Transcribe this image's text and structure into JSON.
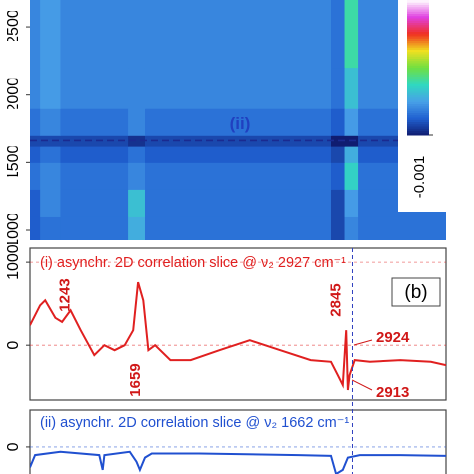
{
  "chart_data": [
    {
      "type": "heatmap",
      "x_edges": [
        1020,
        1080,
        1200,
        1600,
        1700,
        2800,
        2880,
        2960,
        3480
      ],
      "y_edges": [
        926,
        1100,
        1300,
        1500,
        1620,
        1700,
        1900,
        2200,
        2700
      ],
      "z": [
        [
          -0.0007,
          -0.0006,
          -0.0006,
          -0.0003,
          -0.0006,
          -0.0008,
          -0.0005,
          -0.0006
        ],
        [
          -0.0007,
          -0.0005,
          -0.0006,
          -0.0002,
          -0.0006,
          -0.0008,
          -0.0004,
          -0.0006
        ],
        [
          -0.0006,
          -0.0005,
          -0.0006,
          -0.0005,
          -0.0006,
          -0.0007,
          -0.0001,
          -0.0006
        ],
        [
          -0.0007,
          -0.0006,
          -0.0007,
          -0.0006,
          -0.0007,
          -0.0008,
          -0.0003,
          -0.0007
        ],
        [
          -0.0008,
          -0.0008,
          -0.0008,
          -0.0009,
          -0.0008,
          -0.001,
          -0.001,
          -0.0008
        ],
        [
          -0.0006,
          -0.0005,
          -0.0006,
          -0.0005,
          -0.0006,
          -0.0007,
          -0.0004,
          -0.0006
        ],
        [
          -0.0005,
          -0.0004,
          -0.0005,
          -0.0005,
          -0.0005,
          -0.0006,
          -0.0002,
          -0.0005
        ],
        [
          -0.0005,
          -0.0004,
          -0.0005,
          -0.0005,
          -0.0005,
          -0.0006,
          0.0,
          -0.0005
        ]
      ],
      "clim": [
        -0.001,
        0.0015
      ],
      "colorscale": [
        "#101c70",
        "#2060d0",
        "#48a0e8",
        "#30d8c0",
        "#70e040",
        "#f0e020",
        "#f03020",
        "#e040e0",
        "#ffffff"
      ],
      "colorbar_ticks": [
        -0.001
      ],
      "xlim": [
        1020,
        3480
      ],
      "ylim": [
        926,
        2700
      ],
      "yticks": [
        1000,
        1500,
        2000,
        2500
      ],
      "hline": 1662,
      "annotation": "(ii)"
    },
    {
      "type": "line",
      "title": "(i) asynchr. 2D correlation slice @ ν₂ 2927 cm⁻¹",
      "color": "#e02020",
      "panel_label": "(b)",
      "x": [
        1020,
        1080,
        1110,
        1170,
        1210,
        1260,
        1320,
        1400,
        1460,
        1520,
        1580,
        1630,
        1659,
        1690,
        1720,
        1760,
        1850,
        1970,
        2140,
        2320,
        2500,
        2680,
        2800,
        2840,
        2870,
        2890,
        2900,
        2910,
        2940,
        3030,
        3210,
        3390,
        3480
      ],
      "values": [
        240,
        480,
        540,
        330,
        280,
        420,
        180,
        -120,
        0,
        -60,
        0,
        180,
        760,
        540,
        -60,
        0,
        -180,
        -180,
        -60,
        60,
        -60,
        -180,
        -200,
        -360,
        -480,
        180,
        -540,
        -360,
        -180,
        -200,
        -180,
        -200,
        -240
      ],
      "annotations": [
        1243,
        1659,
        2845,
        2924,
        2913
      ],
      "vline": 2927,
      "xlim": [
        1020,
        3480
      ],
      "ylim": [
        -660,
        1170
      ],
      "yticks": [
        0,
        1000
      ]
    },
    {
      "type": "line",
      "title": "(ii) asynchr. 2D correlation slice @ ν₂ 1662 cm⁻¹",
      "color": "#2050d0",
      "x": [
        1020,
        1050,
        1200,
        1430,
        1450,
        1460,
        1610,
        1650,
        1670,
        1700,
        1740,
        2020,
        2610,
        2800,
        2830,
        2870,
        2900,
        2970,
        3210,
        3480
      ],
      "values": [
        -250,
        -100,
        -60,
        -100,
        -280,
        -100,
        -60,
        -180,
        -280,
        -130,
        -80,
        -80,
        -100,
        -110,
        -330,
        -280,
        -130,
        -100,
        -100,
        -110
      ],
      "xlim": [
        1020,
        3480
      ],
      "ylim": [
        -330,
        450
      ],
      "yticks": [
        0
      ]
    }
  ]
}
